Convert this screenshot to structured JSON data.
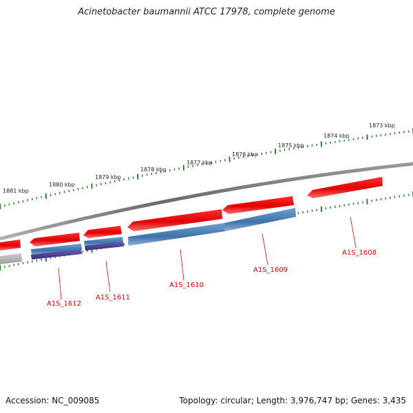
{
  "header": {
    "title": "Acinetobacter baumannii ATCC 17978, complete genome"
  },
  "footer": {
    "accession": "Accession: NC_009085",
    "summary": "Topology: circular; Length: 3,976,747 bp; Genes: 3,435"
  },
  "scale": {
    "labels": [
      "1873 kbp",
      "1874 kbp",
      "1875 kbp",
      "1876 kbp",
      "1877 kbp",
      "1878 kbp",
      "1879 kbp",
      "1880 kbp",
      "1881 kbp"
    ]
  },
  "genes": [
    {
      "id": "A1S_1608"
    },
    {
      "id": "A1S_1609"
    },
    {
      "id": "A1S_1610"
    },
    {
      "id": "A1S_1611"
    },
    {
      "id": "A1S_1612"
    }
  ],
  "colors": {
    "backbone": "#808080",
    "cds_forward": "#e8000b",
    "cds_light": "#ff7a7a",
    "feature_blue": "#4a7db5",
    "feature_purple": "#4a3c8c",
    "tick_green": "#1a7a1a",
    "label_red": "#dd0000"
  }
}
